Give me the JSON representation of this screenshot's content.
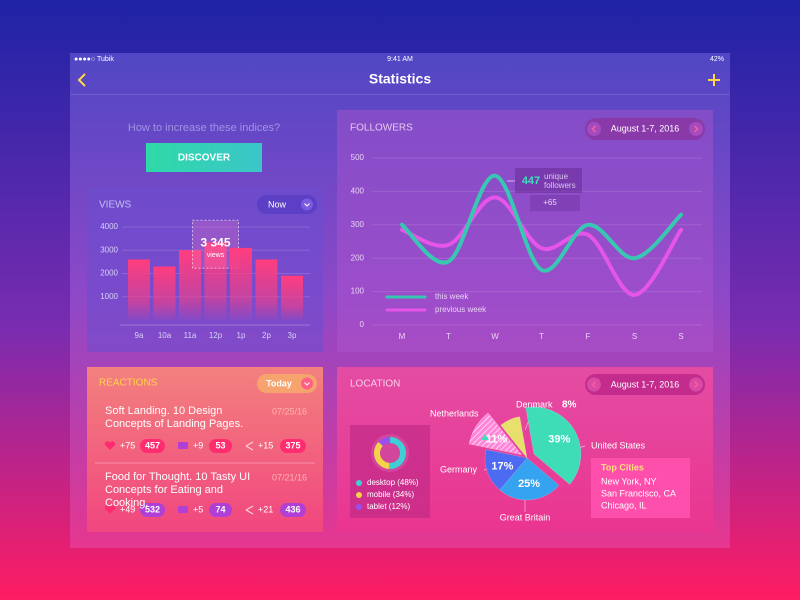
{
  "status_bar": {
    "carrier": "●●●●○ Tubik",
    "time": "9:41 AM",
    "battery": "42%"
  },
  "header": {
    "title": "Statistics"
  },
  "promo": {
    "question": "How to increase these indices?",
    "button": "DISCOVER"
  },
  "reactions": {
    "title": "REACTIONS",
    "filter": "Today",
    "items": [
      {
        "title": "Soft Landing. 10 Design Concepts of Landing Pages.",
        "date": "07/25/16",
        "likes_change": "+75",
        "likes": 457,
        "comments_change": "+9",
        "comments": 53,
        "shares_change": "+15",
        "shares": 375
      },
      {
        "title": "Food for Thought. 10 Tasty UI Concepts for Eating and Cooking.",
        "date": "07/21/16",
        "likes_change": "+49",
        "likes": 532,
        "comments_change": "+5",
        "comments": 74,
        "shares_change": "+21",
        "shares": 436
      }
    ]
  },
  "location": {
    "title": "LOCATION",
    "date_range": "August 1-7, 2016",
    "top_cities": {
      "title": "Top Cities",
      "cities": [
        "New York, NY",
        "San Francisco, CA",
        "Chicago, IL"
      ]
    }
  },
  "chart_data": [
    {
      "type": "bar",
      "title": "VIEWS",
      "filter": "Now",
      "categories": [
        "9a",
        "10a",
        "11a",
        "12p",
        "1p",
        "2p",
        "3p"
      ],
      "values": [
        2600,
        2300,
        3000,
        3345,
        3100,
        2600,
        1900
      ],
      "value_labels": [
        null,
        null,
        null,
        "3 345",
        null,
        null,
        null
      ],
      "annotation": "views",
      "color": "#ff3d7f",
      "ylim": [
        0,
        4000
      ],
      "yticks": [
        1000,
        2000,
        3000,
        4000
      ]
    },
    {
      "type": "line",
      "title": "FOLLOWERS",
      "date_range": "August 1-7, 2016",
      "categories": [
        "M",
        "T",
        "W",
        "T",
        "F",
        "S",
        "S"
      ],
      "series": [
        {
          "name": "this week",
          "color": "#38c8b2",
          "values": [
            300,
            190,
            447,
            165,
            300,
            200,
            330
          ]
        },
        {
          "name": "previous week",
          "color": "#e455e8",
          "values": [
            285,
            240,
            382,
            230,
            270,
            90,
            285
          ]
        }
      ],
      "annotation": {
        "label": "unique followers",
        "change": "+65"
      },
      "ylim": [
        0,
        500
      ],
      "yticks": [
        0,
        100,
        200,
        300,
        400,
        500
      ],
      "grid": true
    },
    {
      "type": "pie",
      "categories": [
        "United States",
        "Great Britain",
        "Germany",
        "Netherlands",
        "Denmark"
      ],
      "values": [
        39,
        25,
        17,
        11,
        8
      ],
      "value_labels": [
        "39%",
        "25%",
        "17%",
        "11%",
        "8%"
      ],
      "colors": [
        "#3fdcb8",
        "#35a3ef",
        "#4d6af2",
        "#ff86d8",
        "#e7e06c"
      ]
    },
    {
      "type": "donut",
      "categories": [
        "desktop (48%)",
        "mobile (34%)",
        "tablet (12%)"
      ],
      "values": [
        48,
        34,
        12
      ],
      "colors": [
        "#3fd0d6",
        "#f4d34a",
        "#9a4ff0"
      ]
    }
  ]
}
